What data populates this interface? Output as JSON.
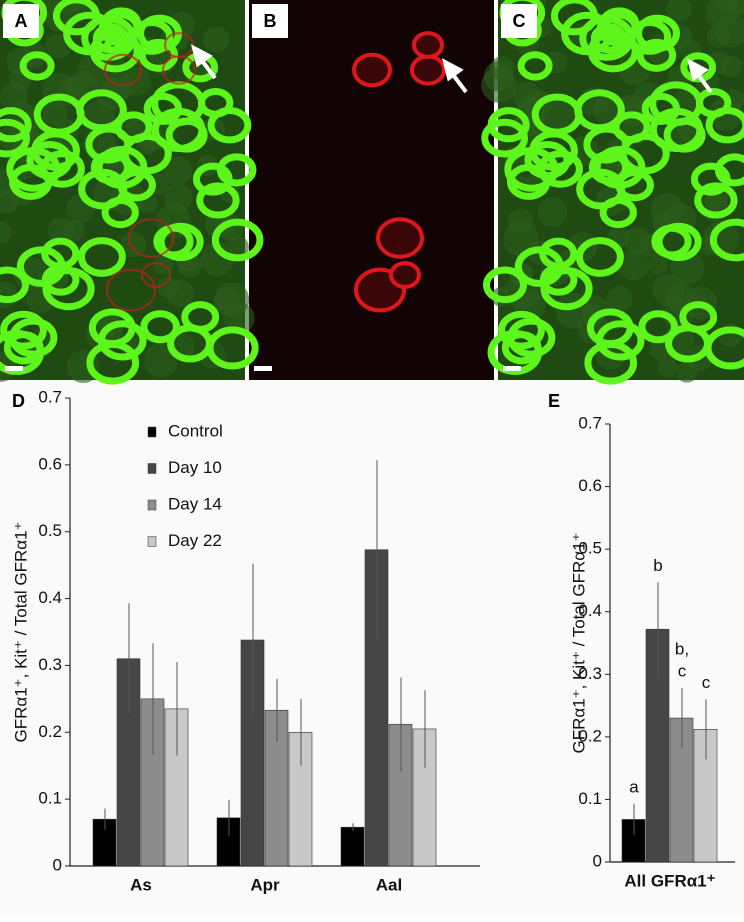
{
  "panel_labels": [
    "A",
    "B",
    "C",
    "D",
    "E"
  ],
  "chart_data": [
    {
      "type": "bar",
      "ylabel": "GFRα1⁺, Kit⁺ / Total GFRα1⁺",
      "categories": [
        "As",
        "Apr",
        "Aal"
      ],
      "ylim": [
        0,
        0.7
      ],
      "yticks": [
        0,
        0.1,
        0.2,
        0.3,
        0.4,
        0.5,
        0.6,
        0.7
      ],
      "legend": "top-left",
      "series": [
        {
          "name": "Control",
          "color": "#000000",
          "values": [
            0.07,
            0.072,
            0.058
          ],
          "errors": [
            0.016,
            0.027,
            0.006
          ]
        },
        {
          "name": "Day 10",
          "color": "#464646",
          "values": [
            0.31,
            0.338,
            0.473
          ],
          "errors": [
            0.083,
            0.114,
            0.134
          ]
        },
        {
          "name": "Day 14",
          "color": "#8c8c8c",
          "values": [
            0.25,
            0.233,
            0.212
          ],
          "errors": [
            0.083,
            0.047,
            0.07
          ]
        },
        {
          "name": "Day 22",
          "color": "#c8c8c8",
          "values": [
            0.235,
            0.2,
            0.205
          ],
          "errors": [
            0.07,
            0.05,
            0.058
          ]
        }
      ]
    },
    {
      "type": "bar",
      "ylabel": "GFRα1⁺, Kit⁺ / Total GFRα1⁺",
      "categories": [
        "All GFRα1⁺"
      ],
      "ylim": [
        0,
        0.7
      ],
      "yticks": [
        0,
        0.1,
        0.2,
        0.3,
        0.4,
        0.5,
        0.6,
        0.7
      ],
      "series": [
        {
          "color": "#000000",
          "values": [
            0.068
          ],
          "errors": [
            0.025
          ],
          "annotation": [
            "a"
          ]
        },
        {
          "color": "#464646",
          "values": [
            0.372
          ],
          "errors": [
            0.075
          ],
          "annotation": [
            "b"
          ]
        },
        {
          "color": "#8c8c8c",
          "values": [
            0.23
          ],
          "errors": [
            0.048
          ],
          "annotation": [
            "b,",
            "c"
          ]
        },
        {
          "color": "#c8c8c8",
          "values": [
            0.212
          ],
          "errors": [
            0.048
          ],
          "annotation": [
            "c"
          ]
        }
      ]
    }
  ]
}
